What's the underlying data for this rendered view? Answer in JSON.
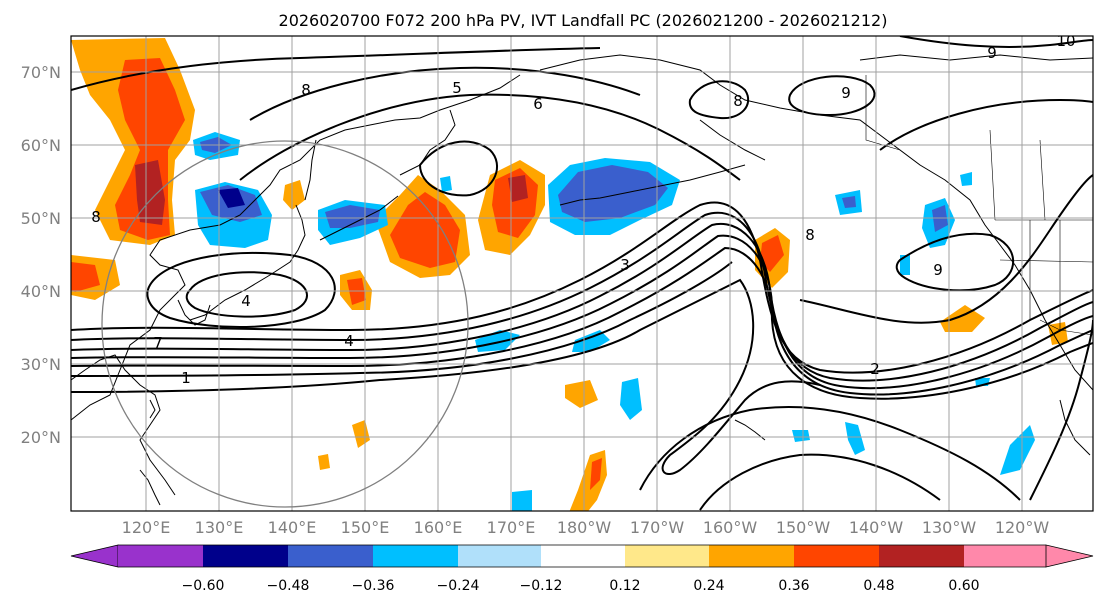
{
  "title": "2026020700 F072 200 hPa PV, IVT Landfall PC (2026021200 - 2026021212)",
  "map": {
    "projection": "lat-lon",
    "lat_range": [
      10,
      75
    ],
    "lon_range": [
      110,
      250
    ],
    "lat_labels": [
      "70°N",
      "60°N",
      "50°N",
      "40°N",
      "30°N",
      "20°N"
    ],
    "lon_labels": [
      "120°E",
      "130°E",
      "140°E",
      "150°E",
      "160°E",
      "170°E",
      "180°W",
      "170°W",
      "160°W",
      "150°W",
      "140°W",
      "130°W",
      "120°W"
    ],
    "contour_labels": [
      "1",
      "2",
      "4",
      "4",
      "5",
      "6",
      "7",
      "8",
      "9",
      "9",
      "10",
      "8",
      "3",
      "8",
      "8",
      "9"
    ],
    "colors": {
      "land_outline": "#000000",
      "contour": "#000000",
      "grid": "#a0a0a0",
      "circle": "#808080"
    }
  },
  "colorbar": {
    "ticks": [
      "−0.60",
      "−0.48",
      "−0.36",
      "−0.24",
      "−0.12",
      "0.12",
      "0.24",
      "0.36",
      "0.48",
      "0.60"
    ],
    "colors": [
      "#9932cc",
      "#00008b",
      "#3a5fcd",
      "#00bfff",
      "#b0e0fa",
      "#ffffff",
      "#ffe88a",
      "#ffa500",
      "#ff4500",
      "#b22222",
      "#ff88aa"
    ]
  }
}
